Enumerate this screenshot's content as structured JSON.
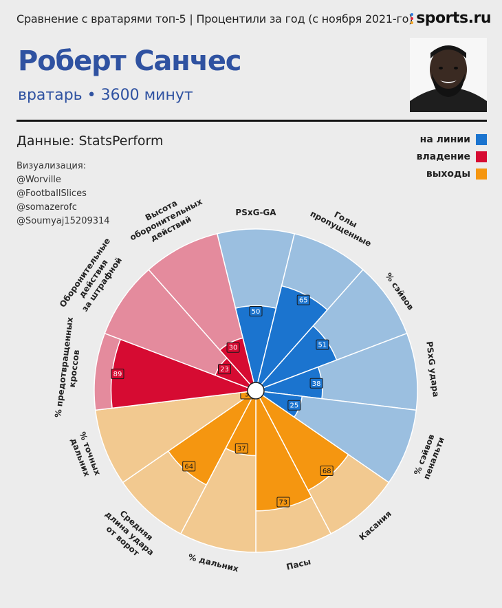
{
  "header": {
    "title": "Сравнение с вратарями топ-5 |  Процентили за год (с ноября 2021-го)",
    "logo": "sports.ru"
  },
  "player": {
    "name": "Роберт Санчес",
    "subtitle": "вратарь • 3600 минут"
  },
  "source": "Данные: StatsPerform",
  "visualization": {
    "heading": "Визуализация:",
    "credits": [
      "@Worville",
      "@FootballSlices",
      "@somazerofc",
      "@Soumyaj15209314"
    ]
  },
  "colors": {
    "shot_stopping": "#1b74cf",
    "shot_stopping_bg": "#9bbfe0",
    "possession": "#d60b32",
    "possession_bg": "#e48b9d",
    "sweeping": "#f59610",
    "sweeping_bg": "#f2c990"
  },
  "legend": [
    {
      "label": "на линии",
      "color": "#1b74cf"
    },
    {
      "label": "владение",
      "color": "#d60b32"
    },
    {
      "label": "выходы",
      "color": "#f59610"
    }
  ],
  "chart_data": {
    "type": "pie",
    "subtype": "polar-bar (pizza plot)",
    "range": [
      0,
      100
    ],
    "categories": [
      {
        "label": "PSxG-GA",
        "value": 50,
        "group": "на линии"
      },
      {
        "label": "Голы пропущенные",
        "value": 65,
        "group": "на линии"
      },
      {
        "label": "% сэйвов",
        "value": 51,
        "group": "на линии"
      },
      {
        "label": "PSxG удара",
        "value": 38,
        "group": "на линии"
      },
      {
        "label": "% сэйвов пенальти",
        "value": 25,
        "group": "на линии"
      },
      {
        "label": "Касания",
        "value": 68,
        "group": "выходы"
      },
      {
        "label": "Пасы",
        "value": 73,
        "group": "выходы"
      },
      {
        "label": "% дальних",
        "value": 37,
        "group": "выходы"
      },
      {
        "label": "Средняя длина удара от ворот",
        "value": 64,
        "group": "выходы"
      },
      {
        "label": "% точных дальних",
        "value": 3,
        "group": "выходы"
      },
      {
        "label": "% предотвращенных кроссов",
        "value": 89,
        "group": "владение"
      },
      {
        "label": "Оборонительные действия за штрафной",
        "value": 23,
        "group": "владение"
      },
      {
        "label": "Высота оборонительных действий",
        "value": 30,
        "group": "владение"
      }
    ]
  }
}
